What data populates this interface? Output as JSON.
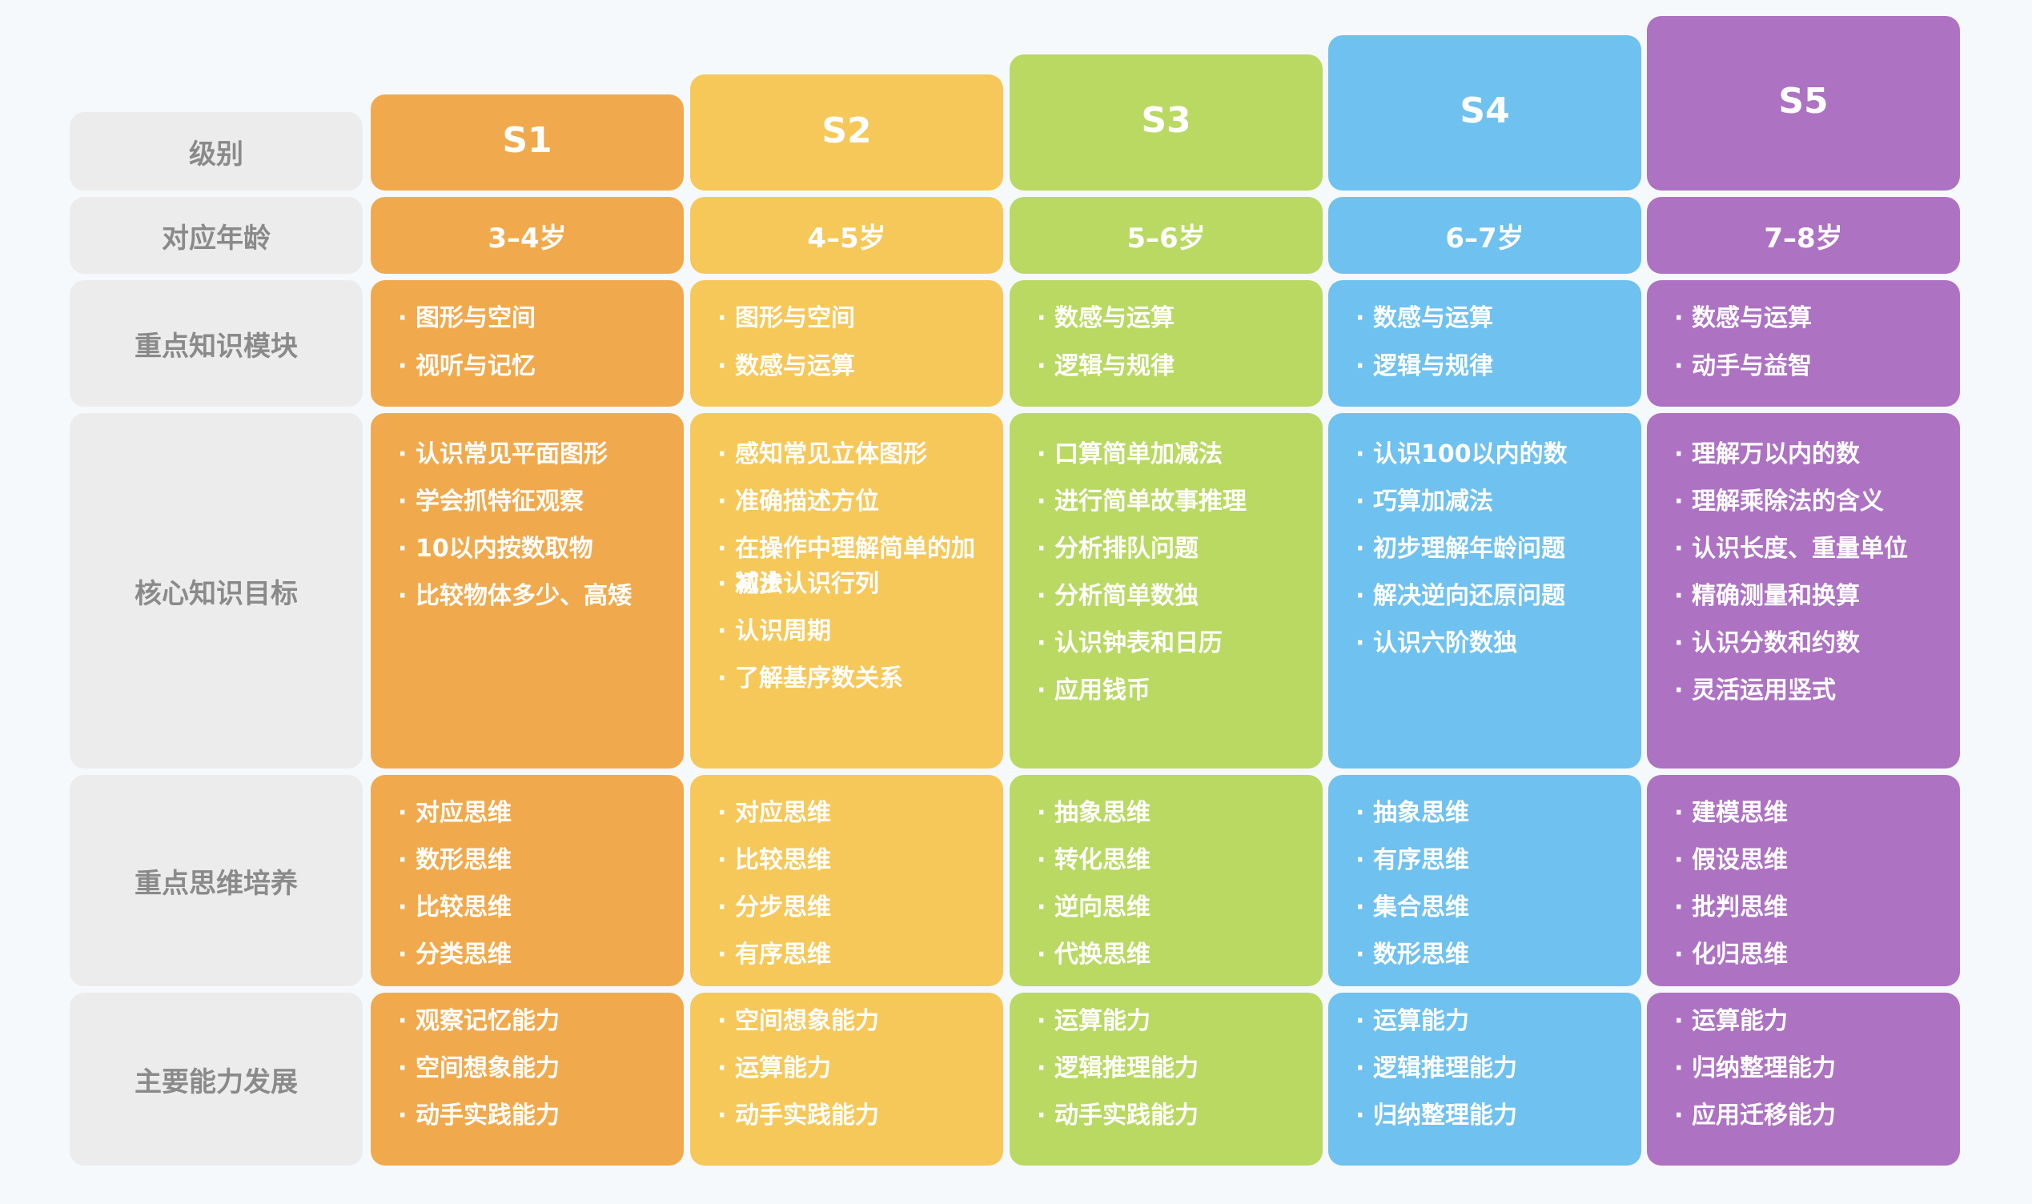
{
  "row_labels": [
    "级别",
    "对应年龄",
    "重点知识模块",
    "核心知识目标",
    "重点思维培养",
    "主要能力发展"
  ],
  "bullet": "·",
  "levels": [
    {
      "name": "S1",
      "age": "3–4岁",
      "color": "#f0aa4d",
      "modules": [
        "图形与空间",
        "视听与记忆"
      ],
      "goals": [
        "认识常见平面图形",
        "学会抓特征观察",
        "10以内按数取物",
        "比较物体多少、高矮"
      ],
      "thinking": [
        "对应思维",
        "数形思维",
        "比较思维",
        "分类思维"
      ],
      "abilities": [
        "观察记忆能力",
        "空间想象能力",
        "动手实践能力"
      ]
    },
    {
      "name": "S2",
      "age": "4–5岁",
      "color": "#f6c85a",
      "modules": [
        "图形与空间",
        "数感与运算"
      ],
      "goals": [
        "感知常见立体图形",
        "准确描述方位",
        "在操作中理解简单的加减法",
        "初步认识行列",
        "认识周期",
        "了解基序数关系"
      ],
      "thinking": [
        "对应思维",
        "比较思维",
        "分步思维",
        "有序思维"
      ],
      "abilities": [
        "空间想象能力",
        "运算能力",
        "动手实践能力"
      ]
    },
    {
      "name": "S3",
      "age": "5–6岁",
      "color": "#b9d963",
      "modules": [
        "数感与运算",
        "逻辑与规律"
      ],
      "goals": [
        "口算简单加减法",
        "进行简单故事推理",
        "分析排队问题",
        "分析简单数独",
        "认识钟表和日历",
        "应用钱币"
      ],
      "thinking": [
        "抽象思维",
        "转化思维",
        "逆向思维",
        "代换思维"
      ],
      "abilities": [
        "运算能力",
        "逻辑推理能力",
        "动手实践能力"
      ]
    },
    {
      "name": "S4",
      "age": "6–7岁",
      "color": "#6fc1ef",
      "modules": [
        "数感与运算",
        "逻辑与规律"
      ],
      "goals": [
        "认识100以内的数",
        "巧算加减法",
        "初步理解年龄问题",
        "解决逆向还原问题",
        "认识六阶数独"
      ],
      "thinking": [
        "抽象思维",
        "有序思维",
        "集合思维",
        "数形思维"
      ],
      "abilities": [
        "运算能力",
        "逻辑推理能力",
        "归纳整理能力"
      ]
    },
    {
      "name": "S5",
      "age": "7–8岁",
      "color": "#ad72c2",
      "modules": [
        "数感与运算",
        "动手与益智"
      ],
      "goals": [
        "理解万以内的数",
        "理解乘除法的含义",
        "认识长度、重量单位",
        "精确测量和换算",
        "认识分数和约数",
        "灵活运用竖式"
      ],
      "thinking": [
        "建模思维",
        "假设思维",
        "批判思维",
        "化归思维"
      ],
      "abilities": [
        "运算能力",
        "归纳整理能力",
        "应用迁移能力"
      ]
    }
  ]
}
